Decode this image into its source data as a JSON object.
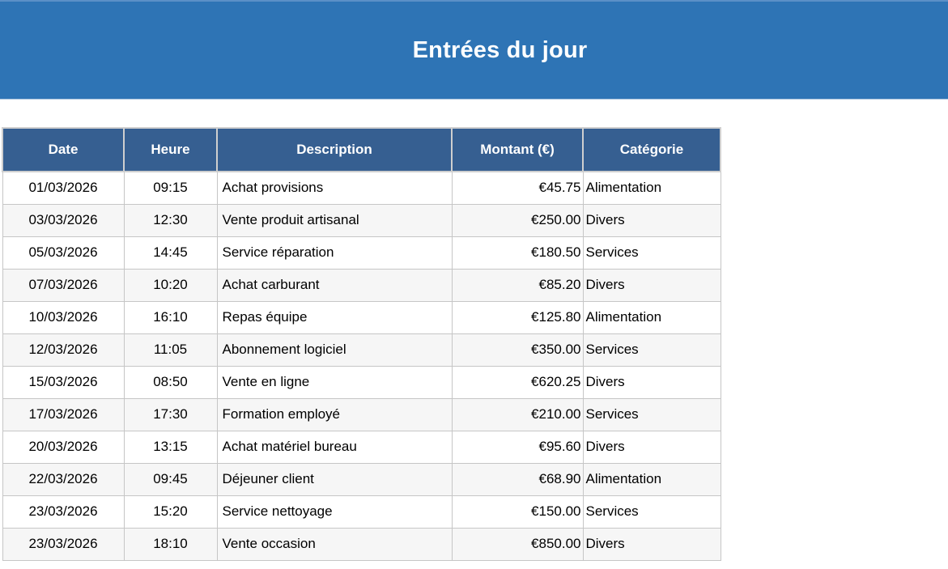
{
  "banner": {
    "title": "Entrées du jour",
    "background_color": "#2E74B5",
    "text_color": "#FFFFFF"
  },
  "table": {
    "header_background_color": "#365F91",
    "header_text_color": "#FFFFFF",
    "stripe_color": "#F6F6F6",
    "border_color": "#C6C6C6",
    "columns": [
      {
        "key": "date",
        "label": "Date",
        "align": "center"
      },
      {
        "key": "heure",
        "label": "Heure",
        "align": "center"
      },
      {
        "key": "description",
        "label": "Description",
        "align": "left"
      },
      {
        "key": "montant",
        "label": "Montant (€)",
        "align": "right"
      },
      {
        "key": "categorie",
        "label": "Catégorie",
        "align": "left"
      }
    ],
    "rows": [
      {
        "date": "01/03/2026",
        "heure": "09:15",
        "description": "Achat provisions",
        "montant": "€45.75",
        "categorie": "Alimentation"
      },
      {
        "date": "03/03/2026",
        "heure": "12:30",
        "description": "Vente produit artisanal",
        "montant": "€250.00",
        "categorie": "Divers"
      },
      {
        "date": "05/03/2026",
        "heure": "14:45",
        "description": "Service réparation",
        "montant": "€180.50",
        "categorie": "Services"
      },
      {
        "date": "07/03/2026",
        "heure": "10:20",
        "description": "Achat carburant",
        "montant": "€85.20",
        "categorie": "Divers"
      },
      {
        "date": "10/03/2026",
        "heure": "16:10",
        "description": "Repas équipe",
        "montant": "€125.80",
        "categorie": "Alimentation"
      },
      {
        "date": "12/03/2026",
        "heure": "11:05",
        "description": "Abonnement logiciel",
        "montant": "€350.00",
        "categorie": "Services"
      },
      {
        "date": "15/03/2026",
        "heure": "08:50",
        "description": "Vente en ligne",
        "montant": "€620.25",
        "categorie": "Divers"
      },
      {
        "date": "17/03/2026",
        "heure": "17:30",
        "description": "Formation employé",
        "montant": "€210.00",
        "categorie": "Services"
      },
      {
        "date": "20/03/2026",
        "heure": "13:15",
        "description": "Achat matériel bureau",
        "montant": "€95.60",
        "categorie": "Divers"
      },
      {
        "date": "22/03/2026",
        "heure": "09:45",
        "description": "Déjeuner client",
        "montant": "€68.90",
        "categorie": "Alimentation"
      },
      {
        "date": "23/03/2026",
        "heure": "15:20",
        "description": "Service nettoyage",
        "montant": "€150.00",
        "categorie": "Services"
      },
      {
        "date": "23/03/2026",
        "heure": "18:10",
        "description": "Vente occasion",
        "montant": "€850.00",
        "categorie": "Divers"
      }
    ]
  }
}
